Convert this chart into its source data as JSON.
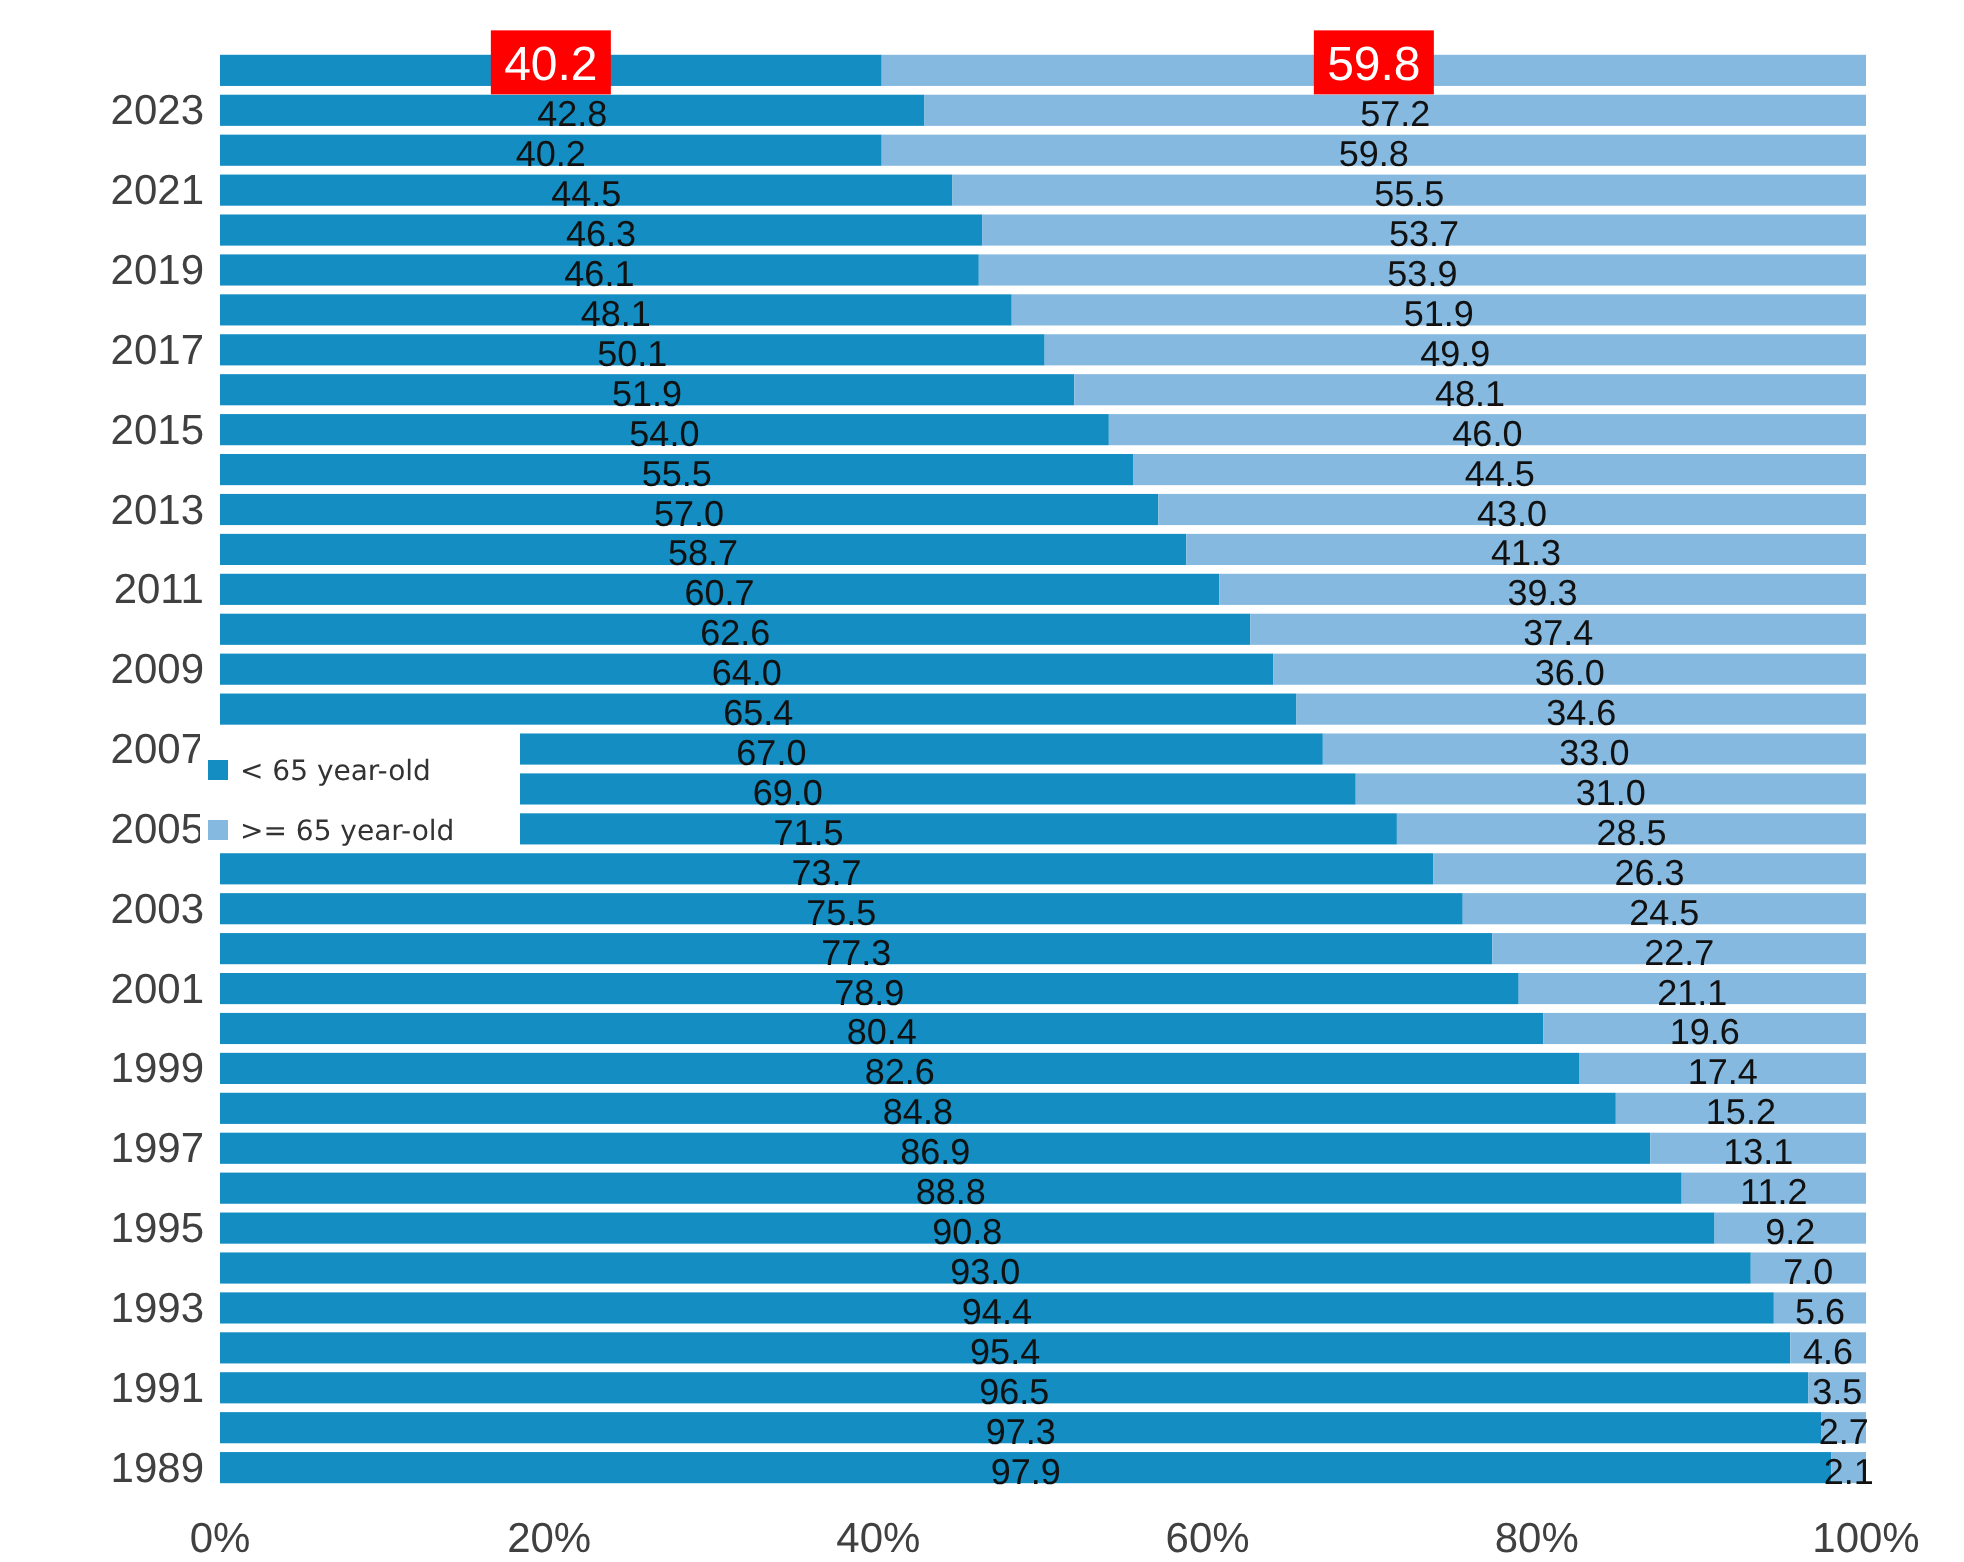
{
  "chart_data": {
    "type": "bar",
    "orientation": "horizontal",
    "stacked": true,
    "categories": [
      null,
      "2023",
      null,
      "2021",
      null,
      "2019",
      null,
      "2017",
      null,
      "2015",
      null,
      "2013",
      null,
      "2011",
      null,
      "2009",
      null,
      "2007",
      null,
      "2005",
      null,
      "2003",
      null,
      "2001",
      null,
      "1999",
      null,
      "1997",
      null,
      "1995",
      null,
      "1993",
      null,
      "1991",
      null,
      "1989"
    ],
    "series": [
      {
        "name": "< 65 year-old",
        "color": "#138dc2",
        "values": [
          40.2,
          42.8,
          40.2,
          44.5,
          46.3,
          46.1,
          48.1,
          50.1,
          51.9,
          54.0,
          55.5,
          57.0,
          58.7,
          60.7,
          62.6,
          64.0,
          65.4,
          67.0,
          69.0,
          71.5,
          73.7,
          75.5,
          77.3,
          78.9,
          80.4,
          82.6,
          84.8,
          86.9,
          88.8,
          90.8,
          93.0,
          94.4,
          95.4,
          96.5,
          97.3,
          97.9
        ],
        "value_labels": [
          "40.2",
          "42.8",
          "40.2",
          "44.5",
          "46.3",
          "46.1",
          "48.1",
          "50.1",
          "51.9",
          "54.0",
          "55.5",
          "57.0",
          "58.7",
          "60.7",
          "62.6",
          "64.0",
          "65.4",
          "67.0",
          "69.0",
          "71.5",
          "73.7",
          "75.5",
          "77.3",
          "78.9",
          "80.4",
          "82.6",
          "84.8",
          "86.9",
          "88.8",
          "90.8",
          "93.0",
          "94.4",
          "95.4",
          "96.5",
          "97.3",
          "97.9"
        ]
      },
      {
        "name": ">= 65 year-old",
        "color": "#85b9e0",
        "values": [
          59.8,
          57.2,
          59.8,
          55.5,
          53.7,
          53.9,
          51.9,
          49.9,
          48.1,
          46.0,
          44.5,
          43.0,
          41.3,
          39.3,
          37.4,
          36.0,
          34.6,
          33.0,
          31.0,
          28.5,
          26.3,
          24.5,
          22.7,
          21.1,
          19.6,
          17.4,
          15.2,
          13.1,
          11.2,
          9.2,
          7.0,
          5.6,
          4.6,
          3.5,
          2.7,
          2.1
        ],
        "value_labels": [
          "59.8",
          "57.2",
          "59.8",
          "55.5",
          "53.7",
          "53.9",
          "51.9",
          "49.9",
          "48.1",
          "46.0",
          "44.5",
          "43.0",
          "41.3",
          "39.3",
          "37.4",
          "36.0",
          "34.6",
          "33.0",
          "31.0",
          "28.5",
          "26.3",
          "24.5",
          "22.7",
          "21.1",
          "19.6",
          "17.4",
          "15.2",
          "13.1",
          "11.2",
          "9.2",
          "7.0",
          "5.6",
          "4.6",
          "3.5",
          "2.7",
          "2.1"
        ]
      }
    ],
    "xlim": [
      0,
      100
    ],
    "xticks": [
      {
        "value": 0,
        "label": "0%"
      },
      {
        "value": 20,
        "label": "20%"
      },
      {
        "value": 40,
        "label": "40%"
      },
      {
        "value": 60,
        "label": "60%"
      },
      {
        "value": 80,
        "label": "80%"
      },
      {
        "value": 100,
        "label": "100%"
      }
    ],
    "legend": "left",
    "grid": false
  }
}
